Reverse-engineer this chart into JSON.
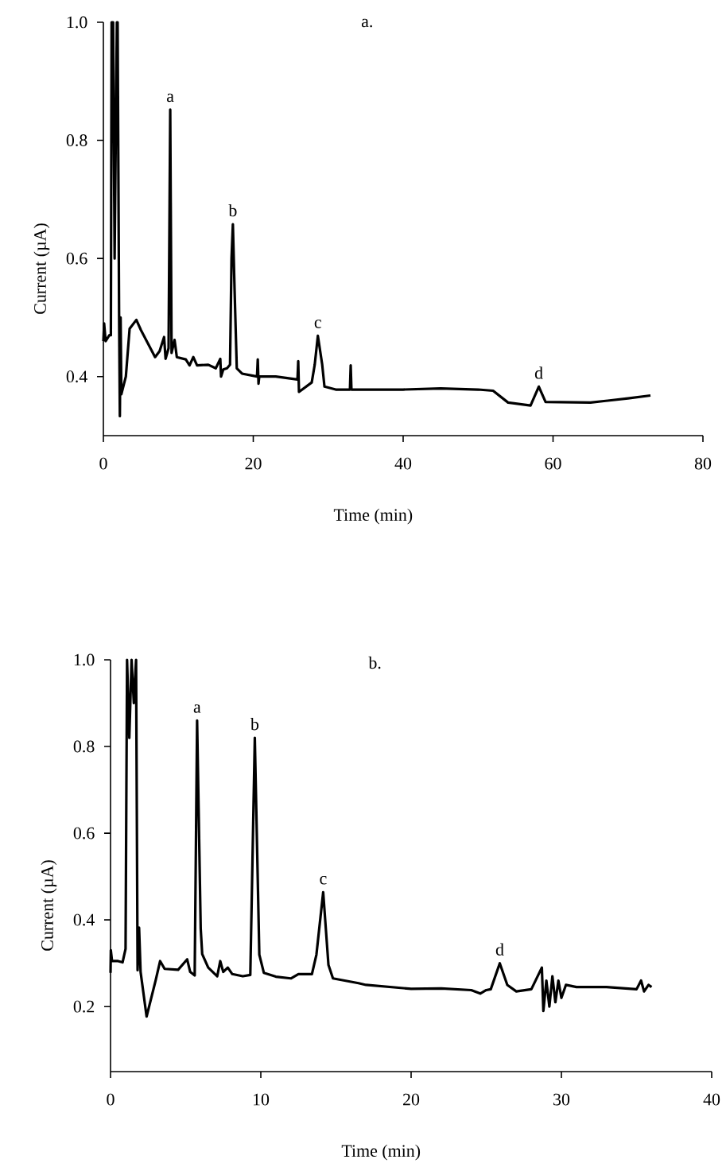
{
  "chart_data": [
    {
      "type": "line",
      "title": "a.",
      "xlabel": "Time (min)",
      "ylabel": "Current (µA)",
      "xlim": [
        0,
        80
      ],
      "ylim": [
        0.3,
        1.0
      ],
      "xticks": [
        0,
        20,
        40,
        60,
        80
      ],
      "yticks": [
        0.4,
        0.6,
        0.8,
        {
          "value": 1.0,
          "label": "1.0"
        }
      ],
      "marker": "none",
      "line_style": "solid",
      "series": [
        {
          "color": "#000000",
          "x": [
            0,
            0.1,
            0.3,
            0.8,
            1.0,
            1.1,
            1.3,
            1.5,
            1.8,
            1.9,
            2.1,
            2.2,
            2.3,
            2.4,
            3.0,
            3.5,
            4.4,
            5.0,
            6.9,
            7.5,
            8.1,
            8.3,
            8.7,
            8.92,
            9.1,
            9.5,
            9.8,
            11.0,
            11.5,
            12.0,
            12.5,
            14.0,
            15.0,
            15.6,
            15.7,
            16.0,
            16.5,
            16.9,
            17.1,
            17.28,
            17.5,
            17.8,
            18.5,
            20.5,
            20.6,
            20.7,
            20.8,
            23.0,
            25.9,
            26.0,
            26.1,
            27.8,
            28.2,
            28.62,
            29.2,
            29.5,
            31.0,
            32.9,
            33.0,
            33.1,
            40,
            45,
            50,
            52,
            54,
            57,
            58.1,
            59,
            65,
            70,
            73
          ],
          "values": [
            0.46,
            0.49,
            0.46,
            0.47,
            0.47,
            1.0,
            1.0,
            0.6,
            1.0,
            1.0,
            0.5,
            0.333,
            0.5,
            0.37,
            0.4,
            0.481,
            0.496,
            0.479,
            0.433,
            0.443,
            0.467,
            0.43,
            0.448,
            0.852,
            0.44,
            0.462,
            0.433,
            0.429,
            0.419,
            0.433,
            0.419,
            0.42,
            0.414,
            0.43,
            0.4,
            0.412,
            0.414,
            0.42,
            0.6,
            0.658,
            0.55,
            0.414,
            0.405,
            0.4,
            0.429,
            0.388,
            0.4,
            0.4,
            0.395,
            0.426,
            0.374,
            0.39,
            0.42,
            0.469,
            0.42,
            0.383,
            0.378,
            0.378,
            0.419,
            0.378,
            0.378,
            0.38,
            0.378,
            0.376,
            0.356,
            0.351,
            0.383,
            0.357,
            0.356,
            0.363,
            0.368
          ]
        }
      ],
      "annotations": [
        {
          "text": "a",
          "x": 8.92,
          "y": 0.852
        },
        {
          "text": "b",
          "x": 17.28,
          "y": 0.658
        },
        {
          "text": "c",
          "x": 28.62,
          "y": 0.469
        },
        {
          "text": "d",
          "x": 58.1,
          "y": 0.383
        }
      ]
    },
    {
      "type": "line",
      "title": "b.",
      "xlabel": "Time (min)",
      "ylabel": "Current (µA)",
      "xlim": [
        0,
        40
      ],
      "ylim": [
        0.05,
        1.0
      ],
      "xticks": [
        0,
        10,
        20,
        30,
        40
      ],
      "yticks": [
        0.2,
        0.4,
        0.6,
        0.8,
        {
          "value": 1.0,
          "label": "1.0"
        }
      ],
      "marker": "none",
      "line_style": "solid",
      "series": [
        {
          "color": "#000000",
          "x": [
            0,
            0.02,
            0.1,
            0.5,
            0.8,
            1.0,
            1.1,
            1.25,
            1.4,
            1.55,
            1.7,
            1.8,
            1.9,
            2.0,
            2.4,
            3.0,
            3.3,
            3.6,
            4.5,
            5.1,
            5.3,
            5.6,
            5.76,
            6.0,
            6.1,
            6.5,
            7.1,
            7.3,
            7.5,
            7.8,
            8.1,
            8.8,
            9.3,
            9.6,
            9.9,
            10.2,
            11,
            12,
            12.5,
            13.4,
            13.7,
            14.15,
            14.5,
            14.8,
            16.5,
            17,
            20,
            22,
            24,
            24.6,
            25,
            25.3,
            25.9,
            26.4,
            27,
            28,
            28.7,
            28.8,
            29.0,
            29.2,
            29.4,
            29.6,
            29.8,
            30.0,
            30.3,
            31,
            33,
            35,
            35.3,
            35.5,
            35.8,
            36
          ],
          "values": [
            0.278,
            0.33,
            0.305,
            0.305,
            0.302,
            0.333,
            1.0,
            0.82,
            1.0,
            0.9,
            1.0,
            0.284,
            0.382,
            0.28,
            0.177,
            0.26,
            0.305,
            0.287,
            0.285,
            0.309,
            0.28,
            0.272,
            0.86,
            0.38,
            0.321,
            0.29,
            0.27,
            0.305,
            0.28,
            0.29,
            0.275,
            0.27,
            0.273,
            0.82,
            0.32,
            0.278,
            0.269,
            0.265,
            0.275,
            0.275,
            0.32,
            0.464,
            0.296,
            0.265,
            0.254,
            0.25,
            0.241,
            0.242,
            0.238,
            0.23,
            0.238,
            0.24,
            0.3,
            0.25,
            0.235,
            0.24,
            0.29,
            0.19,
            0.26,
            0.2,
            0.27,
            0.21,
            0.26,
            0.22,
            0.25,
            0.245,
            0.245,
            0.24,
            0.26,
            0.235,
            0.25,
            0.245
          ]
        }
      ],
      "annotations": [
        {
          "text": "a",
          "x": 5.76,
          "y": 0.86
        },
        {
          "text": "b",
          "x": 9.6,
          "y": 0.82
        },
        {
          "text": "c",
          "x": 14.15,
          "y": 0.464
        },
        {
          "text": "d",
          "x": 25.9,
          "y": 0.3
        }
      ]
    }
  ]
}
